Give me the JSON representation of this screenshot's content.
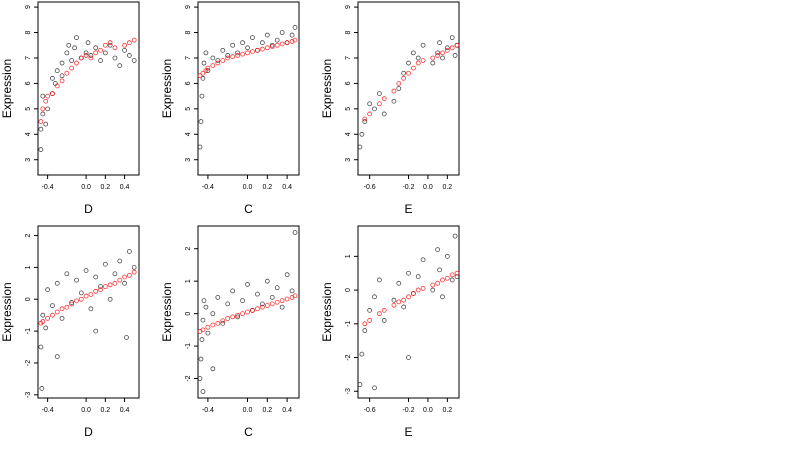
{
  "chart_data": [
    {
      "type": "scatter",
      "title": "",
      "xlabel": "D",
      "ylabel": "Expression",
      "xlim": [
        -0.5,
        0.55
      ],
      "ylim": [
        2.4,
        9.2
      ],
      "xticks": [
        -0.4,
        0.0,
        0.2,
        0.4
      ],
      "xtick_labels": [
        "-0.4",
        "0.0",
        "0.2",
        "0.4"
      ],
      "yticks": [
        3,
        4,
        5,
        6,
        7,
        8,
        9
      ],
      "ytick_labels": [
        "3",
        "4",
        "5",
        "6",
        "7",
        "8",
        "9"
      ],
      "grid": false,
      "series": [
        {
          "color": "#000000",
          "marker": "open-circle",
          "x": [
            -0.47,
            -0.47,
            -0.45,
            -0.45,
            -0.42,
            -0.4,
            -0.35,
            -0.35,
            -0.32,
            -0.3,
            -0.25,
            -0.25,
            -0.2,
            -0.18,
            -0.15,
            -0.12,
            -0.1,
            -0.05,
            0.0,
            0.02,
            0.05,
            0.1,
            0.15,
            0.2,
            0.25,
            0.3,
            0.35,
            0.4,
            0.45,
            0.5
          ],
          "y": [
            3.4,
            4.2,
            4.8,
            5.5,
            4.4,
            5.0,
            5.6,
            6.2,
            6.0,
            6.5,
            6.3,
            6.8,
            7.2,
            7.5,
            6.9,
            7.4,
            7.8,
            7.0,
            7.2,
            7.6,
            7.1,
            7.4,
            6.9,
            7.2,
            7.5,
            7.0,
            6.7,
            7.3,
            7.1,
            6.9
          ]
        },
        {
          "color": "#ff0000",
          "marker": "open-circle",
          "x": [
            -0.47,
            -0.45,
            -0.42,
            -0.4,
            -0.35,
            -0.3,
            -0.25,
            -0.2,
            -0.15,
            -0.1,
            -0.05,
            0.0,
            0.05,
            0.1,
            0.15,
            0.2,
            0.25,
            0.3,
            0.4,
            0.45,
            0.5
          ],
          "y": [
            4.5,
            5.0,
            5.3,
            5.5,
            5.6,
            5.9,
            6.1,
            6.4,
            6.6,
            6.8,
            7.0,
            7.1,
            7.0,
            7.2,
            7.3,
            7.5,
            7.6,
            7.4,
            7.5,
            7.6,
            7.7
          ]
        }
      ]
    },
    {
      "type": "scatter",
      "title": "",
      "xlabel": "C",
      "ylabel": "Expression",
      "xlim": [
        -0.5,
        0.52
      ],
      "ylim": [
        2.4,
        9.2
      ],
      "xticks": [
        -0.4,
        0.0,
        0.2,
        0.4
      ],
      "xtick_labels": [
        "-0.4",
        "0.0",
        "0.2",
        "0.4"
      ],
      "yticks": [
        3,
        4,
        5,
        6,
        7,
        8,
        9
      ],
      "ytick_labels": [
        "3",
        "4",
        "5",
        "6",
        "7",
        "8",
        "9"
      ],
      "grid": false,
      "series": [
        {
          "color": "#000000",
          "marker": "open-circle",
          "x": [
            -0.48,
            -0.47,
            -0.46,
            -0.45,
            -0.44,
            -0.42,
            -0.4,
            -0.35,
            -0.3,
            -0.25,
            -0.2,
            -0.15,
            -0.1,
            -0.05,
            0.0,
            0.05,
            0.1,
            0.15,
            0.2,
            0.25,
            0.3,
            0.35,
            0.4,
            0.45,
            0.48
          ],
          "y": [
            3.5,
            4.5,
            5.5,
            6.2,
            6.8,
            7.2,
            6.5,
            7.0,
            6.9,
            7.3,
            7.1,
            7.5,
            7.2,
            7.6,
            7.4,
            7.8,
            7.3,
            7.6,
            7.9,
            7.5,
            7.7,
            8.0,
            7.6,
            7.9,
            8.2
          ]
        },
        {
          "color": "#ff0000",
          "marker": "open-circle",
          "x": [
            -0.48,
            -0.45,
            -0.42,
            -0.4,
            -0.35,
            -0.3,
            -0.25,
            -0.2,
            -0.15,
            -0.1,
            -0.05,
            0.0,
            0.05,
            0.1,
            0.15,
            0.2,
            0.25,
            0.3,
            0.35,
            0.4,
            0.45,
            0.48
          ],
          "y": [
            6.3,
            6.4,
            6.5,
            6.6,
            6.7,
            6.8,
            6.9,
            7.0,
            7.05,
            7.1,
            7.15,
            7.2,
            7.25,
            7.3,
            7.35,
            7.4,
            7.45,
            7.5,
            7.55,
            7.6,
            7.65,
            7.7
          ]
        }
      ]
    },
    {
      "type": "scatter",
      "title": "",
      "xlabel": "E",
      "ylabel": "Expression",
      "xlim": [
        -0.72,
        0.32
      ],
      "ylim": [
        2.4,
        9.2
      ],
      "xticks": [
        -0.6,
        -0.2,
        0.0,
        0.2
      ],
      "xtick_labels": [
        "-0.6",
        "-0.2",
        "0.0",
        "0.2"
      ],
      "yticks": [
        3,
        4,
        5,
        6,
        7,
        8,
        9
      ],
      "ytick_labels": [
        "3",
        "4",
        "5",
        "6",
        "7",
        "8",
        "9"
      ],
      "grid": false,
      "series": [
        {
          "color": "#000000",
          "marker": "open-circle",
          "x": [
            -0.7,
            -0.68,
            -0.65,
            -0.6,
            -0.55,
            -0.5,
            -0.45,
            -0.35,
            -0.3,
            -0.25,
            -0.2,
            -0.15,
            -0.1,
            -0.05,
            0.05,
            0.1,
            0.12,
            0.15,
            0.2,
            0.25,
            0.28,
            0.3
          ],
          "y": [
            3.5,
            4.0,
            4.5,
            5.2,
            5.0,
            5.6,
            4.8,
            5.3,
            5.8,
            6.4,
            6.8,
            7.2,
            7.0,
            7.5,
            6.8,
            7.2,
            7.6,
            7.0,
            7.4,
            7.8,
            7.1,
            7.5
          ]
        },
        {
          "color": "#ff0000",
          "marker": "open-circle",
          "x": [
            -0.65,
            -0.6,
            -0.5,
            -0.45,
            -0.35,
            -0.3,
            -0.25,
            -0.2,
            -0.15,
            -0.1,
            -0.05,
            0.05,
            0.1,
            0.15,
            0.2,
            0.25,
            0.3
          ],
          "y": [
            4.6,
            4.8,
            5.2,
            5.4,
            5.7,
            6.0,
            6.2,
            6.4,
            6.6,
            6.8,
            6.9,
            7.0,
            7.1,
            7.2,
            7.3,
            7.4,
            7.5
          ]
        }
      ]
    },
    {
      "type": "scatter",
      "title": "",
      "xlabel": "D",
      "ylabel": "Expression",
      "xlim": [
        -0.5,
        0.55
      ],
      "ylim": [
        -3.1,
        2.3
      ],
      "xticks": [
        -0.4,
        0.0,
        0.2,
        0.4
      ],
      "xtick_labels": [
        "-0.4",
        "0.0",
        "0.2",
        "0.4"
      ],
      "yticks": [
        -3,
        -2,
        -1,
        0,
        1,
        2
      ],
      "ytick_labels": [
        "-3",
        "-2",
        "-1",
        "0",
        "1",
        "2"
      ],
      "grid": false,
      "series": [
        {
          "color": "#000000",
          "marker": "open-circle",
          "x": [
            -0.47,
            -0.45,
            -0.42,
            -0.4,
            -0.35,
            -0.3,
            -0.25,
            -0.2,
            -0.15,
            -0.1,
            -0.05,
            0.0,
            0.05,
            0.1,
            0.15,
            0.2,
            0.25,
            0.3,
            0.35,
            0.4,
            0.45,
            0.5,
            -0.46,
            -0.3,
            0.1,
            0.42
          ],
          "y": [
            -1.5,
            -0.5,
            -0.9,
            0.3,
            -0.2,
            0.5,
            -0.6,
            0.8,
            -0.1,
            0.6,
            0.2,
            0.9,
            -0.3,
            0.7,
            0.4,
            1.1,
            0.0,
            0.8,
            1.2,
            0.5,
            1.5,
            1.0,
            -2.8,
            -1.8,
            -1.0,
            -1.2
          ]
        },
        {
          "color": "#ff0000",
          "marker": "open-circle",
          "x": [
            -0.47,
            -0.45,
            -0.4,
            -0.35,
            -0.3,
            -0.25,
            -0.2,
            -0.15,
            -0.1,
            -0.05,
            0.0,
            0.05,
            0.1,
            0.15,
            0.2,
            0.25,
            0.3,
            0.35,
            0.4,
            0.45,
            0.5
          ],
          "y": [
            -0.75,
            -0.7,
            -0.6,
            -0.5,
            -0.4,
            -0.3,
            -0.25,
            -0.15,
            -0.05,
            0.0,
            0.1,
            0.15,
            0.25,
            0.3,
            0.4,
            0.45,
            0.5,
            0.6,
            0.7,
            0.75,
            0.85
          ]
        }
      ]
    },
    {
      "type": "scatter",
      "title": "",
      "xlabel": "C",
      "ylabel": "Expression",
      "xlim": [
        -0.5,
        0.52
      ],
      "ylim": [
        -2.6,
        2.7
      ],
      "xticks": [
        -0.4,
        0.0,
        0.2,
        0.4
      ],
      "xtick_labels": [
        "-0.4",
        "0.0",
        "0.2",
        "0.4"
      ],
      "yticks": [
        -2,
        -1,
        0,
        1,
        2
      ],
      "ytick_labels": [
        "-2",
        "-1",
        "0",
        "1",
        "2"
      ],
      "grid": false,
      "series": [
        {
          "color": "#000000",
          "marker": "open-circle",
          "x": [
            -0.48,
            -0.47,
            -0.46,
            -0.45,
            -0.44,
            -0.42,
            -0.4,
            -0.35,
            -0.3,
            -0.25,
            -0.2,
            -0.15,
            -0.1,
            -0.05,
            0.0,
            0.05,
            0.1,
            0.15,
            0.2,
            0.25,
            0.3,
            0.35,
            0.4,
            0.45,
            0.48,
            -0.45,
            -0.35
          ],
          "y": [
            -2.0,
            -1.4,
            -0.8,
            -0.2,
            0.4,
            0.2,
            -0.6,
            0.0,
            0.5,
            -0.3,
            0.3,
            0.7,
            -0.1,
            0.4,
            0.9,
            0.1,
            0.6,
            0.3,
            1.0,
            0.5,
            0.8,
            0.2,
            1.2,
            0.7,
            2.5,
            -2.4,
            -1.7
          ]
        },
        {
          "color": "#ff0000",
          "marker": "open-circle",
          "x": [
            -0.48,
            -0.45,
            -0.4,
            -0.35,
            -0.3,
            -0.25,
            -0.2,
            -0.15,
            -0.1,
            -0.05,
            0.0,
            0.05,
            0.1,
            0.15,
            0.2,
            0.25,
            0.3,
            0.35,
            0.4,
            0.45,
            0.48
          ],
          "y": [
            -0.55,
            -0.5,
            -0.42,
            -0.35,
            -0.3,
            -0.22,
            -0.15,
            -0.1,
            -0.05,
            0.0,
            0.05,
            0.1,
            0.15,
            0.2,
            0.25,
            0.3,
            0.35,
            0.4,
            0.45,
            0.5,
            0.55
          ]
        }
      ]
    },
    {
      "type": "scatter",
      "title": "",
      "xlabel": "E",
      "ylabel": "Expression",
      "xlim": [
        -0.72,
        0.32
      ],
      "ylim": [
        -3.2,
        1.9
      ],
      "xticks": [
        -0.6,
        -0.2,
        0.0,
        0.2
      ],
      "xtick_labels": [
        "-0.6",
        "-0.2",
        "0.0",
        "0.2"
      ],
      "yticks": [
        -3,
        -2,
        -1,
        0,
        1
      ],
      "ytick_labels": [
        "-3",
        "-2",
        "-1",
        "0",
        "1"
      ],
      "grid": false,
      "series": [
        {
          "color": "#000000",
          "marker": "open-circle",
          "x": [
            -0.7,
            -0.68,
            -0.65,
            -0.6,
            -0.55,
            -0.5,
            -0.45,
            -0.35,
            -0.3,
            -0.25,
            -0.2,
            -0.15,
            -0.1,
            -0.05,
            0.05,
            0.1,
            0.12,
            0.15,
            0.2,
            0.25,
            0.28,
            0.3,
            -0.55,
            -0.2
          ],
          "y": [
            -2.8,
            -1.9,
            -1.2,
            -0.6,
            -0.2,
            0.3,
            -0.9,
            -0.3,
            0.2,
            -0.5,
            0.5,
            -0.1,
            0.4,
            0.9,
            0.0,
            1.2,
            0.6,
            -0.2,
            1.0,
            0.3,
            1.6,
            0.4,
            -2.9,
            -2.0
          ]
        },
        {
          "color": "#ff0000",
          "marker": "open-circle",
          "x": [
            -0.65,
            -0.6,
            -0.5,
            -0.45,
            -0.35,
            -0.3,
            -0.25,
            -0.2,
            -0.15,
            -0.1,
            -0.05,
            0.05,
            0.1,
            0.15,
            0.2,
            0.25,
            0.3
          ],
          "y": [
            -1.0,
            -0.9,
            -0.7,
            -0.6,
            -0.45,
            -0.35,
            -0.3,
            -0.2,
            -0.1,
            0.0,
            0.05,
            0.15,
            0.2,
            0.3,
            0.35,
            0.45,
            0.5
          ]
        }
      ]
    }
  ]
}
